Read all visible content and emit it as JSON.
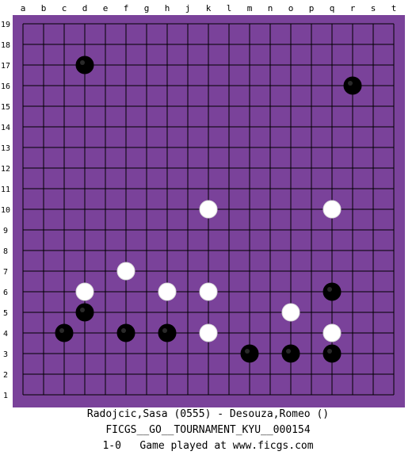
{
  "board": {
    "size": 19,
    "background_color": "#ffffff",
    "board_color": "#7a429a",
    "line_color": "#000000",
    "columns": [
      "a",
      "b",
      "c",
      "d",
      "e",
      "f",
      "g",
      "h",
      "j",
      "k",
      "l",
      "m",
      "n",
      "o",
      "p",
      "q",
      "r",
      "s",
      "t"
    ],
    "rows": [
      "19",
      "18",
      "17",
      "16",
      "15",
      "14",
      "13",
      "12",
      "11",
      "10",
      "9",
      "8",
      "7",
      "6",
      "5",
      "4",
      "3",
      "2",
      "1"
    ]
  },
  "stones": {
    "black": [
      {
        "col": "d",
        "row": 17
      },
      {
        "col": "r",
        "row": 16
      },
      {
        "col": "q",
        "row": 6
      },
      {
        "col": "d",
        "row": 5
      },
      {
        "col": "c",
        "row": 4
      },
      {
        "col": "f",
        "row": 4
      },
      {
        "col": "h",
        "row": 4
      },
      {
        "col": "m",
        "row": 3
      },
      {
        "col": "o",
        "row": 3
      },
      {
        "col": "q",
        "row": 3
      }
    ],
    "white": [
      {
        "col": "k",
        "row": 10
      },
      {
        "col": "q",
        "row": 10
      },
      {
        "col": "f",
        "row": 7
      },
      {
        "col": "d",
        "row": 6
      },
      {
        "col": "h",
        "row": 6
      },
      {
        "col": "k",
        "row": 6
      },
      {
        "col": "o",
        "row": 5
      },
      {
        "col": "k",
        "row": 4
      },
      {
        "col": "q",
        "row": 4
      }
    ]
  },
  "caption": {
    "players": "Radojcic,Sasa (0555) - Desouza,Romeo ()",
    "event": "FICGS__GO__TOURNAMENT_KYU__000154",
    "result": "1-0   Game played at www.ficgs.com"
  }
}
